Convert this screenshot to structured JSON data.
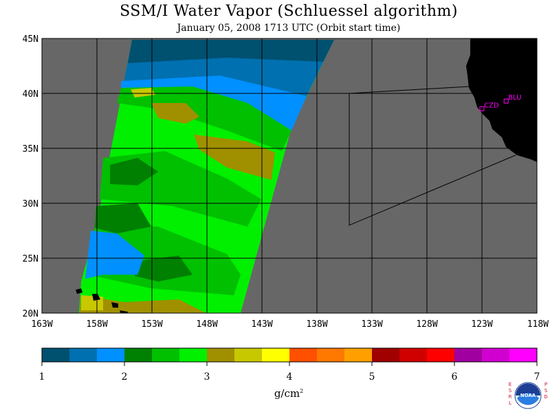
{
  "header": {
    "title": "SSM/I Water Vapor (Schluessel algorithm)",
    "subtitle": "January 05, 2008  1713 UTC  (Orbit start time)"
  },
  "map": {
    "lon_range": [
      -163,
      -118
    ],
    "lat_range": [
      20,
      45
    ],
    "lon_labels": [
      "163W",
      "158W",
      "153W",
      "148W",
      "143W",
      "138W",
      "133W",
      "128W",
      "123W",
      "118W"
    ],
    "lat_labels": [
      "20N",
      "25N",
      "30N",
      "35N",
      "40N",
      "45N"
    ],
    "stations": [
      {
        "id": "CZD",
        "lon": -123.0,
        "lat": 38.6
      },
      {
        "id": "BLU",
        "lon": -120.8,
        "lat": 39.3
      }
    ],
    "colors": {
      "background_ocean": "#676767",
      "land": "#000000",
      "grid": "#000000",
      "station": "#ff00ff"
    }
  },
  "colorbar": {
    "tick_labels": [
      "1",
      "2",
      "3",
      "4",
      "5",
      "6",
      "7"
    ],
    "unit": "g/cm",
    "unit_exp": "2",
    "colors": [
      "#005070",
      "#0070b0",
      "#0090ff",
      "#008000",
      "#00c000",
      "#00f000",
      "#a09000",
      "#c8c800",
      "#ffff00",
      "#ff5000",
      "#ff7800",
      "#ffa000",
      "#a00000",
      "#d00000",
      "#ff0000",
      "#a000a0",
      "#d000d0",
      "#ff00ff"
    ]
  },
  "logo": {
    "left_text": "ESRL",
    "right_text": "PSD",
    "agency": "NOAA"
  }
}
